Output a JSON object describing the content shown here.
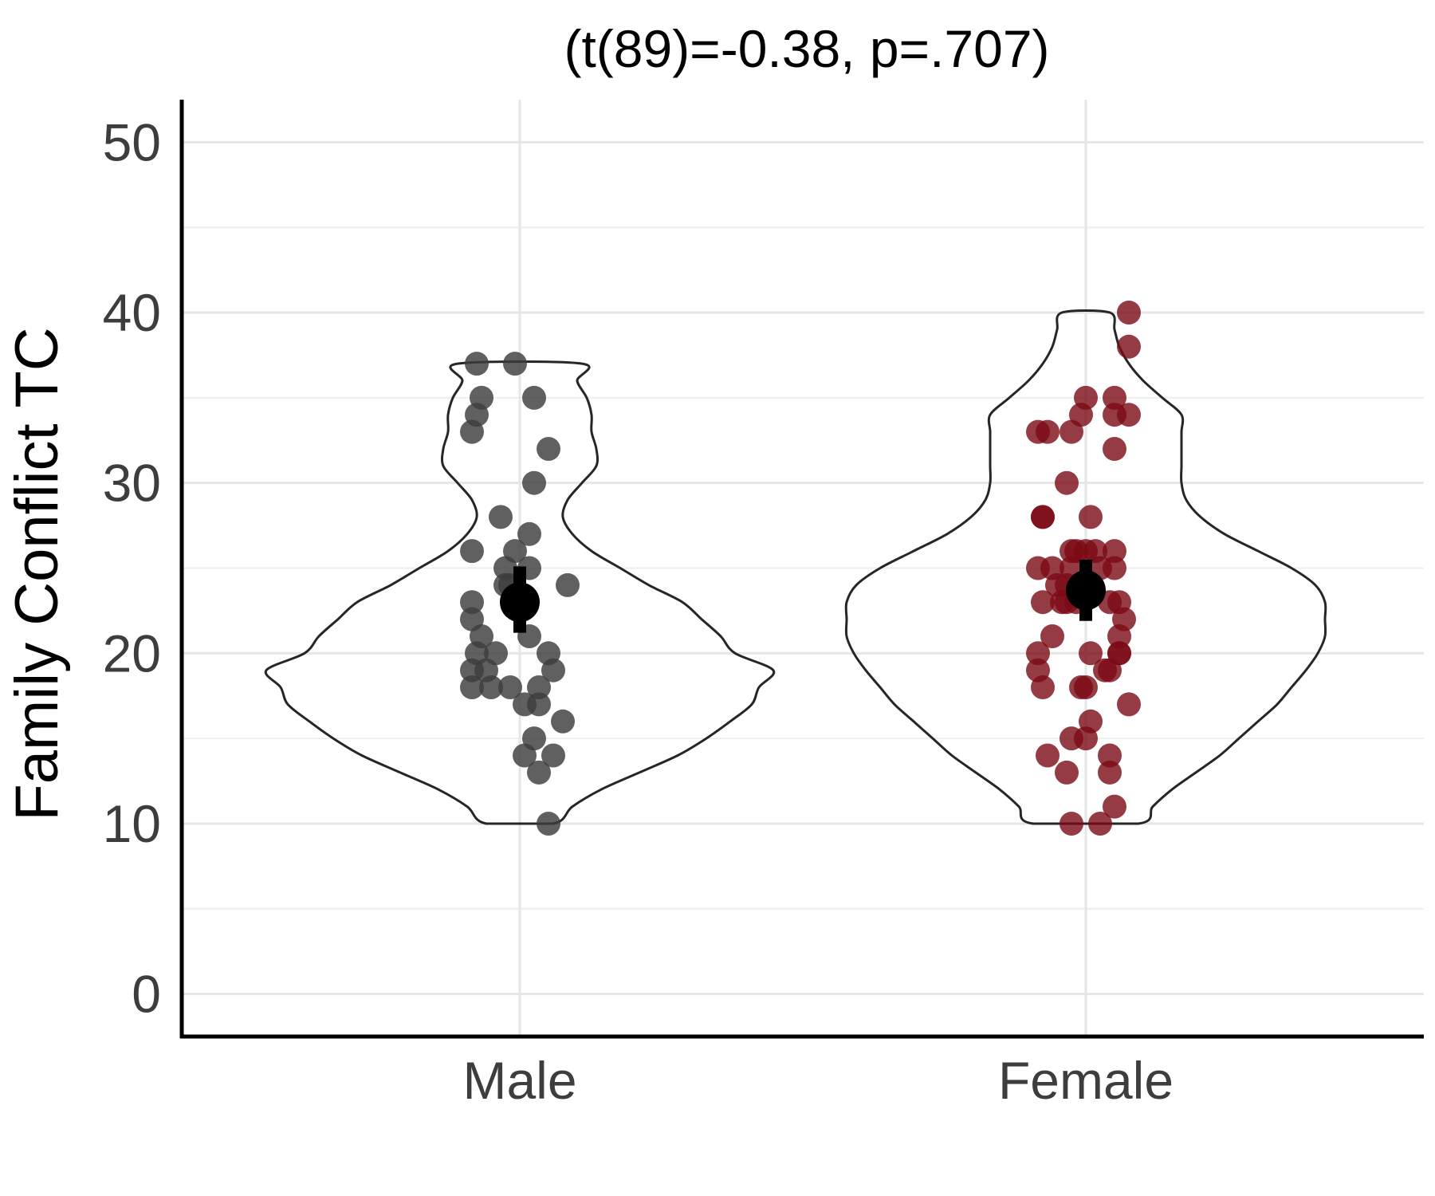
{
  "chart_data": {
    "type": "violin",
    "title": "(t(89)=-0.38, p=.707)",
    "xlabel": "",
    "ylabel": "Family Conflict TC",
    "ylim": [
      -2.5,
      52.5
    ],
    "yticks": [
      0,
      10,
      20,
      30,
      40,
      50
    ],
    "categories": [
      "Male",
      "Female"
    ],
    "grid": true,
    "series": [
      {
        "category": "Male",
        "color": "#3d3d3d",
        "point_opacity": 0.82,
        "points": [
          [
            -0.09,
            37
          ],
          [
            -0.01,
            37
          ],
          [
            -0.08,
            35
          ],
          [
            0.03,
            35
          ],
          [
            -0.09,
            34
          ],
          [
            -0.1,
            33
          ],
          [
            0.06,
            32
          ],
          [
            0.03,
            30
          ],
          [
            -0.04,
            28
          ],
          [
            0.02,
            27
          ],
          [
            -0.1,
            26
          ],
          [
            -0.01,
            26
          ],
          [
            -0.03,
            25
          ],
          [
            0.02,
            25
          ],
          [
            -0.03,
            24
          ],
          [
            0.1,
            24
          ],
          [
            -0.02,
            24
          ],
          [
            -0.1,
            23
          ],
          [
            -0.1,
            22
          ],
          [
            -0.08,
            21
          ],
          [
            0.02,
            21
          ],
          [
            -0.09,
            20
          ],
          [
            -0.05,
            20
          ],
          [
            0.06,
            20
          ],
          [
            -0.1,
            19
          ],
          [
            -0.07,
            19
          ],
          [
            0.07,
            19
          ],
          [
            -0.1,
            18
          ],
          [
            -0.06,
            18
          ],
          [
            -0.02,
            18
          ],
          [
            0.04,
            18
          ],
          [
            0.01,
            17
          ],
          [
            0.04,
            17
          ],
          [
            0.09,
            16
          ],
          [
            0.03,
            15
          ],
          [
            0.01,
            14
          ],
          [
            0.07,
            14
          ],
          [
            0.04,
            13
          ],
          [
            0.06,
            10
          ]
        ],
        "mean": 23,
        "ci": [
          21.2,
          25.1
        ],
        "violin": [
          [
            10,
            0.07
          ],
          [
            11,
            0.11
          ],
          [
            12,
            0.17
          ],
          [
            13,
            0.25
          ],
          [
            14,
            0.33
          ],
          [
            15,
            0.39
          ],
          [
            16,
            0.44
          ],
          [
            17,
            0.485
          ],
          [
            18,
            0.5
          ],
          [
            19,
            0.53
          ],
          [
            20,
            0.45
          ],
          [
            21,
            0.42
          ],
          [
            22,
            0.38
          ],
          [
            23,
            0.34
          ],
          [
            24,
            0.27
          ],
          [
            25,
            0.21
          ],
          [
            26,
            0.15
          ],
          [
            27,
            0.11
          ],
          [
            28,
            0.09
          ],
          [
            29,
            0.1
          ],
          [
            30,
            0.13
          ],
          [
            31,
            0.16
          ],
          [
            32,
            0.16
          ],
          [
            33,
            0.15
          ],
          [
            34,
            0.15
          ],
          [
            35,
            0.14
          ],
          [
            36,
            0.12
          ],
          [
            37,
            0.13
          ]
        ]
      },
      {
        "category": "Female",
        "color": "#7a0a14",
        "point_opacity": 0.8,
        "points": [
          [
            0.09,
            40
          ],
          [
            0.09,
            38
          ],
          [
            0.0,
            35
          ],
          [
            0.06,
            35
          ],
          [
            -0.01,
            34
          ],
          [
            0.06,
            34
          ],
          [
            0.09,
            34
          ],
          [
            -0.1,
            33
          ],
          [
            -0.08,
            33
          ],
          [
            -0.03,
            33
          ],
          [
            0.06,
            32
          ],
          [
            -0.04,
            30
          ],
          [
            -0.09,
            28
          ],
          [
            -0.09,
            28
          ],
          [
            0.01,
            28
          ],
          [
            -0.03,
            26
          ],
          [
            -0.02,
            26
          ],
          [
            0.0,
            26
          ],
          [
            0.02,
            26
          ],
          [
            0.06,
            26
          ],
          [
            -0.1,
            25
          ],
          [
            -0.07,
            25
          ],
          [
            -0.03,
            25
          ],
          [
            0.03,
            25
          ],
          [
            0.06,
            25
          ],
          [
            -0.06,
            24
          ],
          [
            -0.04,
            24
          ],
          [
            0.0,
            24
          ],
          [
            -0.09,
            23
          ],
          [
            -0.05,
            23
          ],
          [
            -0.04,
            23
          ],
          [
            -0.02,
            23
          ],
          [
            0.05,
            23
          ],
          [
            0.07,
            23
          ],
          [
            0.08,
            22
          ],
          [
            -0.07,
            21
          ],
          [
            0.07,
            21
          ],
          [
            -0.1,
            20
          ],
          [
            0.01,
            20
          ],
          [
            0.07,
            20
          ],
          [
            0.07,
            20
          ],
          [
            -0.1,
            19
          ],
          [
            0.04,
            19
          ],
          [
            0.05,
            19
          ],
          [
            -0.09,
            18
          ],
          [
            -0.01,
            18
          ],
          [
            0.0,
            18
          ],
          [
            0.09,
            17
          ],
          [
            0.01,
            16
          ],
          [
            -0.03,
            15
          ],
          [
            0.0,
            15
          ],
          [
            -0.08,
            14
          ],
          [
            0.05,
            14
          ],
          [
            -0.04,
            13
          ],
          [
            0.05,
            13
          ],
          [
            0.06,
            11
          ],
          [
            -0.03,
            10
          ],
          [
            0.03,
            10
          ]
        ],
        "mean": 23.7,
        "ci": [
          21.9,
          25.5
        ],
        "violin": [
          [
            10,
            0.11
          ],
          [
            11,
            0.14
          ],
          [
            12,
            0.18
          ],
          [
            13,
            0.23
          ],
          [
            14,
            0.28
          ],
          [
            15,
            0.32
          ],
          [
            16,
            0.36
          ],
          [
            17,
            0.4
          ],
          [
            18,
            0.43
          ],
          [
            19,
            0.46
          ],
          [
            20,
            0.485
          ],
          [
            21,
            0.5
          ],
          [
            22,
            0.5
          ],
          [
            23,
            0.5
          ],
          [
            24,
            0.48
          ],
          [
            25,
            0.43
          ],
          [
            26,
            0.36
          ],
          [
            27,
            0.29
          ],
          [
            28,
            0.24
          ],
          [
            29,
            0.21
          ],
          [
            30,
            0.2
          ],
          [
            31,
            0.2
          ],
          [
            32,
            0.2
          ],
          [
            33,
            0.2
          ],
          [
            34,
            0.2
          ],
          [
            35,
            0.16
          ],
          [
            36,
            0.12
          ],
          [
            37,
            0.09
          ],
          [
            38,
            0.07
          ],
          [
            39,
            0.06
          ],
          [
            40,
            0.05
          ]
        ]
      }
    ]
  }
}
